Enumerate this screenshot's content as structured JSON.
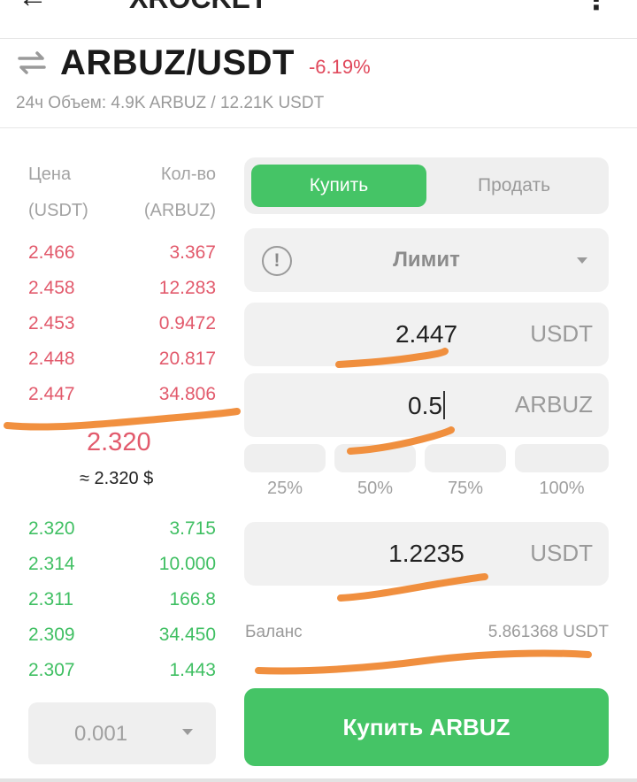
{
  "app": {
    "title": "XROCKET",
    "back_glyph": "←",
    "menu_glyph": "⋮"
  },
  "pair": {
    "name": "ARBUZ/USDT",
    "change": "-6.19%",
    "volume": "24ч Объем: 4.9K ARBUZ / 12.21K USDT"
  },
  "orderbook": {
    "price_header": [
      "Цена",
      "(USDT)"
    ],
    "qty_header": [
      "Кол-во",
      "(ARBUZ)"
    ],
    "asks": [
      {
        "price": "2.466",
        "qty": "3.367"
      },
      {
        "price": "2.458",
        "qty": "12.283"
      },
      {
        "price": "2.453",
        "qty": "0.9472"
      },
      {
        "price": "2.448",
        "qty": "20.817"
      },
      {
        "price": "2.447",
        "qty": "34.806"
      }
    ],
    "last_price": "2.320",
    "last_price_usd": "≈ 2.320 $",
    "bids": [
      {
        "price": "2.320",
        "qty": "3.715"
      },
      {
        "price": "2.314",
        "qty": "10.000"
      },
      {
        "price": "2.311",
        "qty": "166.8"
      },
      {
        "price": "2.309",
        "qty": "34.450"
      },
      {
        "price": "2.307",
        "qty": "1.443"
      }
    ],
    "step_value": "0.001"
  },
  "form": {
    "buy_tab": "Купить",
    "sell_tab": "Продать",
    "order_type": "Лимит",
    "info_glyph": "!",
    "price": {
      "value": "2.447",
      "unit": "USDT"
    },
    "amount": {
      "value": "0.5",
      "unit": "ARBUZ"
    },
    "percents": [
      "25%",
      "50%",
      "75%",
      "100%"
    ],
    "total": {
      "value": "1.2235",
      "unit": "USDT"
    },
    "balance_label": "Баланс",
    "balance_value": "5.861368 USDT",
    "submit_label": "Купить ARBUZ"
  },
  "colors": {
    "green": "#45c466",
    "red": "#e25a6c",
    "annotation": "#f08a35"
  }
}
